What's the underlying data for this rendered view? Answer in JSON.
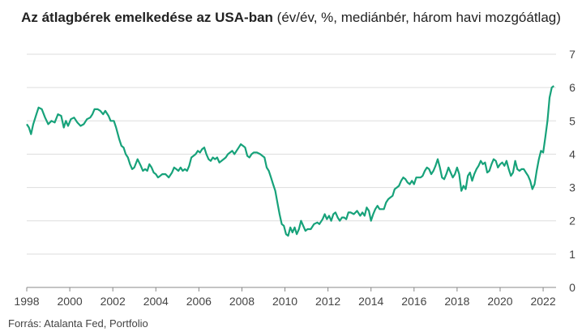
{
  "title": {
    "bold": "Az átlagbérek emelkedése az USA-ban",
    "rest": " (év/év, %, mediánbér, három havi mozgóátlag)"
  },
  "source": "Forrás: Atalanta Fed, Portfolio",
  "colors": {
    "line": "#17a27a",
    "grid": "#dddddd",
    "axis": "#888888"
  },
  "chart_data": {
    "type": "line",
    "title": "Az átlagbérek emelkedése az USA-ban (év/év, %, mediánbér, három havi mozgóátlag)",
    "xlabel": "",
    "ylabel": "",
    "xlim": [
      1998,
      2022.6
    ],
    "ylim": [
      0,
      7
    ],
    "x_ticks": [
      "1998",
      "2000",
      "2002",
      "2004",
      "2006",
      "2008",
      "2010",
      "2012",
      "2014",
      "2016",
      "2018",
      "2020",
      "2022"
    ],
    "y_ticks": [
      "0",
      "1",
      "2",
      "3",
      "4",
      "5",
      "6",
      "7"
    ],
    "grid": true,
    "y_axis_position": "right",
    "series": [
      {
        "name": "",
        "points": [
          [
            1998.0,
            4.9
          ],
          [
            1998.1,
            4.8
          ],
          [
            1998.2,
            4.6
          ],
          [
            1998.3,
            4.9
          ],
          [
            1998.45,
            5.2
          ],
          [
            1998.55,
            5.4
          ],
          [
            1998.7,
            5.35
          ],
          [
            1998.85,
            5.1
          ],
          [
            1999.0,
            4.9
          ],
          [
            1999.15,
            5.0
          ],
          [
            1999.3,
            4.95
          ],
          [
            1999.45,
            5.2
          ],
          [
            1999.6,
            5.15
          ],
          [
            1999.72,
            4.8
          ],
          [
            1999.82,
            5.0
          ],
          [
            1999.92,
            4.85
          ],
          [
            2000.05,
            5.05
          ],
          [
            2000.2,
            5.1
          ],
          [
            2000.35,
            4.95
          ],
          [
            2000.5,
            4.85
          ],
          [
            2000.65,
            4.9
          ],
          [
            2000.8,
            5.05
          ],
          [
            2000.95,
            5.1
          ],
          [
            2001.05,
            5.2
          ],
          [
            2001.15,
            5.35
          ],
          [
            2001.3,
            5.35
          ],
          [
            2001.42,
            5.3
          ],
          [
            2001.55,
            5.2
          ],
          [
            2001.65,
            5.3
          ],
          [
            2001.8,
            5.15
          ],
          [
            2001.9,
            5.0
          ],
          [
            2002.05,
            5.0
          ],
          [
            2002.15,
            4.8
          ],
          [
            2002.3,
            4.45
          ],
          [
            2002.4,
            4.25
          ],
          [
            2002.5,
            4.2
          ],
          [
            2002.6,
            4.0
          ],
          [
            2002.7,
            3.9
          ],
          [
            2002.8,
            3.7
          ],
          [
            2002.9,
            3.55
          ],
          [
            2003.0,
            3.6
          ],
          [
            2003.15,
            3.85
          ],
          [
            2003.3,
            3.65
          ],
          [
            2003.4,
            3.5
          ],
          [
            2003.5,
            3.55
          ],
          [
            2003.6,
            3.5
          ],
          [
            2003.7,
            3.7
          ],
          [
            2003.8,
            3.6
          ],
          [
            2003.9,
            3.45
          ],
          [
            2004.0,
            3.4
          ],
          [
            2004.1,
            3.3
          ],
          [
            2004.2,
            3.35
          ],
          [
            2004.3,
            3.4
          ],
          [
            2004.45,
            3.4
          ],
          [
            2004.6,
            3.3
          ],
          [
            2004.75,
            3.45
          ],
          [
            2004.85,
            3.6
          ],
          [
            2004.95,
            3.55
          ],
          [
            2005.05,
            3.5
          ],
          [
            2005.15,
            3.6
          ],
          [
            2005.25,
            3.5
          ],
          [
            2005.35,
            3.55
          ],
          [
            2005.45,
            3.5
          ],
          [
            2005.55,
            3.65
          ],
          [
            2005.65,
            3.9
          ],
          [
            2005.75,
            3.95
          ],
          [
            2005.85,
            4.0
          ],
          [
            2005.95,
            4.1
          ],
          [
            2006.05,
            4.05
          ],
          [
            2006.15,
            4.15
          ],
          [
            2006.25,
            4.2
          ],
          [
            2006.35,
            4.0
          ],
          [
            2006.45,
            3.85
          ],
          [
            2006.55,
            3.8
          ],
          [
            2006.65,
            3.9
          ],
          [
            2006.75,
            3.85
          ],
          [
            2006.85,
            3.9
          ],
          [
            2006.95,
            3.75
          ],
          [
            2007.05,
            3.8
          ],
          [
            2007.15,
            3.85
          ],
          [
            2007.25,
            3.9
          ],
          [
            2007.35,
            4.0
          ],
          [
            2007.45,
            4.05
          ],
          [
            2007.55,
            4.1
          ],
          [
            2007.65,
            4.0
          ],
          [
            2007.75,
            4.1
          ],
          [
            2007.85,
            4.2
          ],
          [
            2007.95,
            4.3
          ],
          [
            2008.05,
            4.25
          ],
          [
            2008.15,
            4.2
          ],
          [
            2008.25,
            3.95
          ],
          [
            2008.35,
            3.9
          ],
          [
            2008.45,
            4.0
          ],
          [
            2008.55,
            4.05
          ],
          [
            2008.7,
            4.05
          ],
          [
            2008.85,
            4.0
          ],
          [
            2008.95,
            3.95
          ],
          [
            2009.05,
            3.9
          ],
          [
            2009.15,
            3.6
          ],
          [
            2009.25,
            3.5
          ],
          [
            2009.35,
            3.3
          ],
          [
            2009.45,
            3.1
          ],
          [
            2009.55,
            2.9
          ],
          [
            2009.65,
            2.55
          ],
          [
            2009.75,
            2.2
          ],
          [
            2009.85,
            1.9
          ],
          [
            2009.95,
            1.85
          ],
          [
            2010.05,
            1.6
          ],
          [
            2010.15,
            1.55
          ],
          [
            2010.25,
            1.8
          ],
          [
            2010.35,
            1.65
          ],
          [
            2010.45,
            1.8
          ],
          [
            2010.55,
            1.6
          ],
          [
            2010.65,
            1.75
          ],
          [
            2010.75,
            2.0
          ],
          [
            2010.85,
            1.85
          ],
          [
            2010.95,
            1.7
          ],
          [
            2011.05,
            1.75
          ],
          [
            2011.2,
            1.75
          ],
          [
            2011.35,
            1.9
          ],
          [
            2011.5,
            1.95
          ],
          [
            2011.6,
            1.9
          ],
          [
            2011.75,
            2.05
          ],
          [
            2011.85,
            2.2
          ],
          [
            2011.95,
            2.05
          ],
          [
            2012.05,
            2.15
          ],
          [
            2012.15,
            2.0
          ],
          [
            2012.25,
            2.2
          ],
          [
            2012.35,
            2.25
          ],
          [
            2012.45,
            2.1
          ],
          [
            2012.55,
            2.0
          ],
          [
            2012.65,
            2.1
          ],
          [
            2012.75,
            2.1
          ],
          [
            2012.85,
            2.05
          ],
          [
            2012.95,
            2.25
          ],
          [
            2013.05,
            2.25
          ],
          [
            2013.2,
            2.2
          ],
          [
            2013.35,
            2.3
          ],
          [
            2013.5,
            2.15
          ],
          [
            2013.6,
            2.25
          ],
          [
            2013.7,
            2.15
          ],
          [
            2013.8,
            2.4
          ],
          [
            2013.9,
            2.3
          ],
          [
            2014.0,
            2.0
          ],
          [
            2014.1,
            2.2
          ],
          [
            2014.2,
            2.35
          ],
          [
            2014.3,
            2.45
          ],
          [
            2014.4,
            2.35
          ],
          [
            2014.5,
            2.35
          ],
          [
            2014.6,
            2.35
          ],
          [
            2014.7,
            2.55
          ],
          [
            2014.8,
            2.65
          ],
          [
            2014.9,
            2.7
          ],
          [
            2015.0,
            2.75
          ],
          [
            2015.1,
            2.95
          ],
          [
            2015.2,
            3.0
          ],
          [
            2015.3,
            3.05
          ],
          [
            2015.4,
            3.2
          ],
          [
            2015.5,
            3.3
          ],
          [
            2015.6,
            3.25
          ],
          [
            2015.7,
            3.15
          ],
          [
            2015.8,
            3.1
          ],
          [
            2015.9,
            3.2
          ],
          [
            2016.0,
            3.1
          ],
          [
            2016.1,
            3.3
          ],
          [
            2016.2,
            3.3
          ],
          [
            2016.3,
            3.3
          ],
          [
            2016.4,
            3.35
          ],
          [
            2016.5,
            3.5
          ],
          [
            2016.6,
            3.6
          ],
          [
            2016.7,
            3.55
          ],
          [
            2016.8,
            3.4
          ],
          [
            2016.9,
            3.5
          ],
          [
            2017.0,
            3.65
          ],
          [
            2017.1,
            3.85
          ],
          [
            2017.2,
            3.6
          ],
          [
            2017.3,
            3.3
          ],
          [
            2017.4,
            3.25
          ],
          [
            2017.5,
            3.4
          ],
          [
            2017.6,
            3.6
          ],
          [
            2017.7,
            3.45
          ],
          [
            2017.8,
            3.3
          ],
          [
            2017.9,
            3.4
          ],
          [
            2018.0,
            3.6
          ],
          [
            2018.1,
            3.4
          ],
          [
            2018.2,
            2.9
          ],
          [
            2018.3,
            3.05
          ],
          [
            2018.4,
            2.95
          ],
          [
            2018.5,
            3.35
          ],
          [
            2018.6,
            3.45
          ],
          [
            2018.7,
            3.2
          ],
          [
            2018.8,
            3.4
          ],
          [
            2018.9,
            3.55
          ],
          [
            2019.0,
            3.65
          ],
          [
            2019.1,
            3.8
          ],
          [
            2019.2,
            3.7
          ],
          [
            2019.3,
            3.75
          ],
          [
            2019.4,
            3.45
          ],
          [
            2019.5,
            3.5
          ],
          [
            2019.6,
            3.7
          ],
          [
            2019.7,
            3.85
          ],
          [
            2019.8,
            3.8
          ],
          [
            2019.9,
            3.6
          ],
          [
            2020.0,
            3.7
          ],
          [
            2020.1,
            3.75
          ],
          [
            2020.2,
            3.65
          ],
          [
            2020.3,
            3.8
          ],
          [
            2020.4,
            3.55
          ],
          [
            2020.5,
            3.35
          ],
          [
            2020.6,
            3.45
          ],
          [
            2020.7,
            3.8
          ],
          [
            2020.8,
            3.55
          ],
          [
            2020.9,
            3.5
          ],
          [
            2021.0,
            3.55
          ],
          [
            2021.1,
            3.55
          ],
          [
            2021.2,
            3.45
          ],
          [
            2021.3,
            3.35
          ],
          [
            2021.4,
            3.2
          ],
          [
            2021.5,
            2.95
          ],
          [
            2021.6,
            3.1
          ],
          [
            2021.7,
            3.5
          ],
          [
            2021.8,
            3.85
          ],
          [
            2021.9,
            4.1
          ],
          [
            2022.0,
            4.05
          ],
          [
            2022.1,
            4.5
          ],
          [
            2022.2,
            5.0
          ],
          [
            2022.3,
            5.7
          ],
          [
            2022.4,
            6.0
          ],
          [
            2022.5,
            6.05
          ]
        ]
      }
    ]
  }
}
